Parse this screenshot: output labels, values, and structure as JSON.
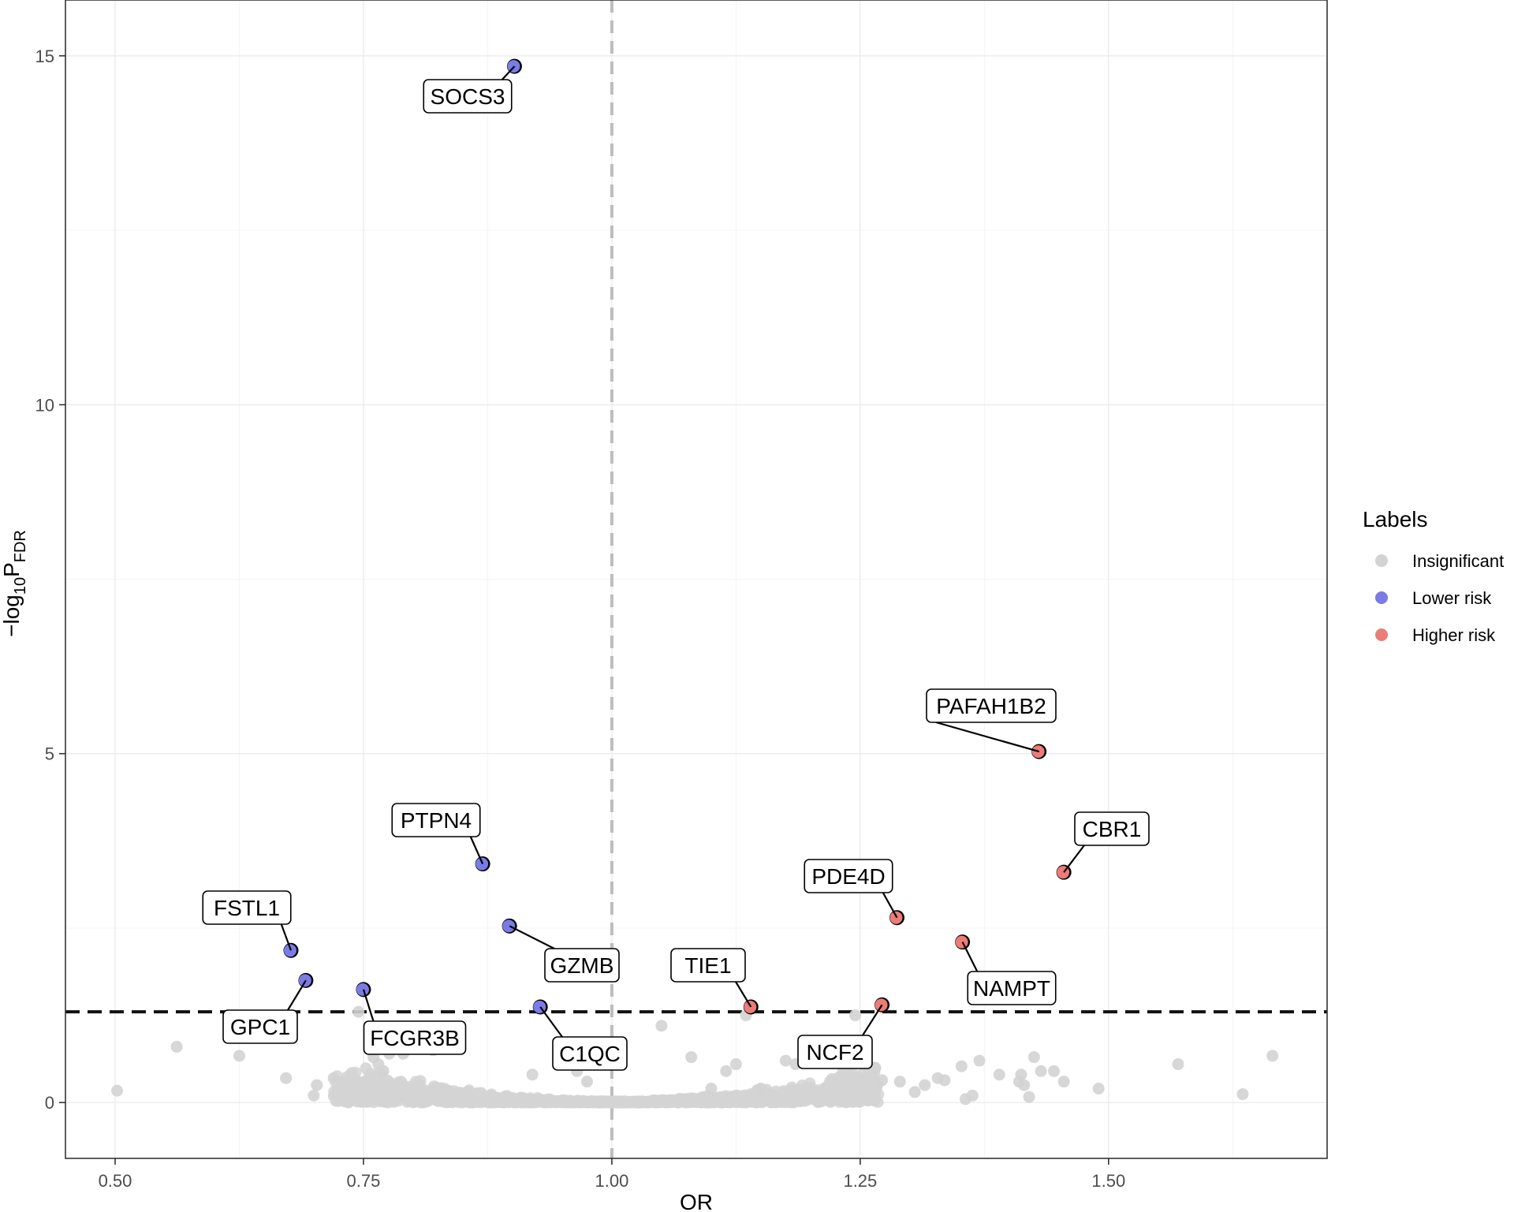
{
  "chart_data": {
    "type": "scatter",
    "subtype": "volcano",
    "xlabel": "OR",
    "ylabel_main": "−log",
    "ylabel_sub": "10",
    "ylabel_p": "P",
    "ylabel_pfdr": "FDR",
    "xlim": [
      0.45,
      1.72
    ],
    "ylim": [
      -0.8,
      15.8
    ],
    "x_ticks": [
      0.5,
      0.75,
      1.0,
      1.25,
      1.5
    ],
    "x_tick_labels": [
      "0.50",
      "0.75",
      "1.00",
      "1.25",
      "1.50"
    ],
    "y_ticks": [
      0,
      5,
      10,
      15
    ],
    "y_tick_labels": [
      "0",
      "5",
      "10",
      "15"
    ],
    "vline": 1.0,
    "hline": 1.3,
    "grid": true,
    "legend": {
      "title": "Labels",
      "position": "right",
      "entries": [
        {
          "label": "Insignificant",
          "color": "#d3d3d3"
        },
        {
          "label": "Lower risk",
          "color": "#7b7be6"
        },
        {
          "label": "Higher risk",
          "color": "#ec7c78"
        }
      ]
    },
    "colors": {
      "insignificant": "#d3d3d3",
      "lower": "#7b7be6",
      "higher": "#ec7c78"
    },
    "labeled_points": [
      {
        "gene": "SOCS3",
        "or": 0.902,
        "y": 14.85,
        "group": "lower"
      },
      {
        "gene": "PTPN4",
        "or": 0.87,
        "y": 3.42,
        "group": "lower"
      },
      {
        "gene": "GZMB",
        "or": 0.897,
        "y": 2.53,
        "group": "lower"
      },
      {
        "gene": "FSTL1",
        "or": 0.677,
        "y": 2.18,
        "group": "lower"
      },
      {
        "gene": "GPC1",
        "or": 0.692,
        "y": 1.75,
        "group": "lower"
      },
      {
        "gene": "FCGR3B",
        "or": 0.75,
        "y": 1.62,
        "group": "lower"
      },
      {
        "gene": "C1QC",
        "or": 0.928,
        "y": 1.37,
        "group": "lower"
      },
      {
        "gene": "TIE1",
        "or": 1.14,
        "y": 1.37,
        "group": "higher"
      },
      {
        "gene": "NCF2",
        "or": 1.272,
        "y": 1.4,
        "group": "higher"
      },
      {
        "gene": "PDE4D",
        "or": 1.287,
        "y": 2.65,
        "group": "higher"
      },
      {
        "gene": "NAMPT",
        "or": 1.353,
        "y": 2.3,
        "group": "higher"
      },
      {
        "gene": "PAFAH1B2",
        "or": 1.43,
        "y": 5.03,
        "group": "higher"
      },
      {
        "gene": "CBR1",
        "or": 1.455,
        "y": 3.3,
        "group": "higher"
      }
    ],
    "insignificant_outliers": [
      {
        "or": 0.502,
        "y": 0.17
      },
      {
        "or": 0.562,
        "y": 0.8
      },
      {
        "or": 0.625,
        "y": 0.67
      },
      {
        "or": 0.672,
        "y": 0.35
      },
      {
        "or": 0.7,
        "y": 0.1
      },
      {
        "or": 0.703,
        "y": 0.25
      },
      {
        "or": 0.72,
        "y": 0.35
      },
      {
        "or": 0.745,
        "y": 1.3
      },
      {
        "or": 0.76,
        "y": 0.65
      },
      {
        "or": 0.765,
        "y": 0.55
      },
      {
        "or": 0.77,
        "y": 0.45
      },
      {
        "or": 0.776,
        "y": 0.7
      },
      {
        "or": 0.79,
        "y": 0.7
      },
      {
        "or": 0.82,
        "y": 0.75
      },
      {
        "or": 0.92,
        "y": 0.4
      },
      {
        "or": 0.965,
        "y": 0.45
      },
      {
        "or": 0.975,
        "y": 0.3
      },
      {
        "or": 1.05,
        "y": 1.1
      },
      {
        "or": 1.08,
        "y": 0.65
      },
      {
        "or": 1.1,
        "y": 0.2
      },
      {
        "or": 1.115,
        "y": 0.45
      },
      {
        "or": 1.125,
        "y": 0.55
      },
      {
        "or": 1.135,
        "y": 1.25
      },
      {
        "or": 1.15,
        "y": 0.2
      },
      {
        "or": 1.175,
        "y": 0.6
      },
      {
        "or": 1.185,
        "y": 0.55
      },
      {
        "or": 1.2,
        "y": 0.65
      },
      {
        "or": 1.245,
        "y": 1.25
      },
      {
        "or": 1.265,
        "y": 0.5
      },
      {
        "or": 1.272,
        "y": 0.32
      },
      {
        "or": 1.29,
        "y": 0.3
      },
      {
        "or": 1.305,
        "y": 0.15
      },
      {
        "or": 1.315,
        "y": 0.25
      },
      {
        "or": 1.328,
        "y": 0.35
      },
      {
        "or": 1.335,
        "y": 0.32
      },
      {
        "or": 1.352,
        "y": 0.52
      },
      {
        "or": 1.356,
        "y": 0.05
      },
      {
        "or": 1.363,
        "y": 0.1
      },
      {
        "or": 1.37,
        "y": 0.6
      },
      {
        "or": 1.39,
        "y": 0.4
      },
      {
        "or": 1.41,
        "y": 0.3
      },
      {
        "or": 1.412,
        "y": 0.4
      },
      {
        "or": 1.415,
        "y": 0.25
      },
      {
        "or": 1.42,
        "y": 0.08
      },
      {
        "or": 1.425,
        "y": 0.65
      },
      {
        "or": 1.432,
        "y": 0.45
      },
      {
        "or": 1.445,
        "y": 0.45
      },
      {
        "or": 1.455,
        "y": 0.3
      },
      {
        "or": 1.49,
        "y": 0.2
      },
      {
        "or": 1.57,
        "y": 0.55
      },
      {
        "or": 1.635,
        "y": 0.12
      },
      {
        "or": 1.665,
        "y": 0.67
      }
    ]
  }
}
